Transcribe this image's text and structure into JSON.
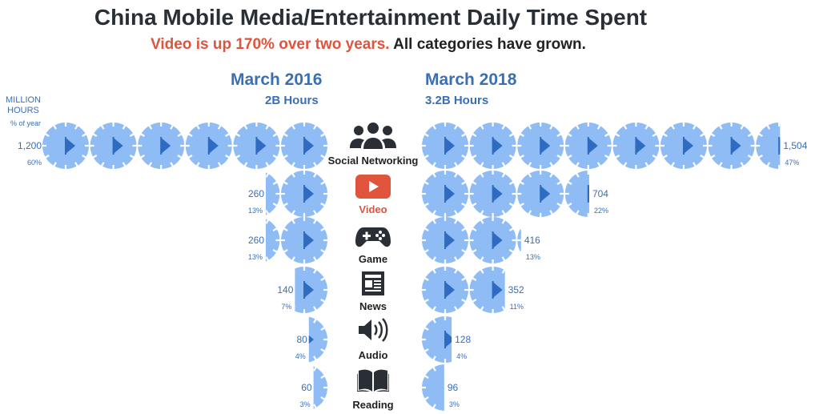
{
  "title": "China Mobile Media/Entertainment Daily Time Spent",
  "subtitle": {
    "highlight": "Video is up 170% over two years.",
    "rest": "All categories have grown."
  },
  "columns": {
    "left": {
      "period": "March 2016",
      "total": "2B Hours"
    },
    "right": {
      "period": "March 2018",
      "total": "3.2B Hours"
    }
  },
  "unit_label": {
    "line1": "MILLION",
    "line2": "HOURS",
    "line3": "% of year"
  },
  "colors": {
    "clock_face": "#8fbcf5",
    "clock_wedge": "#2e6bc1",
    "ticks": "#ffffff",
    "value_text": "#3a6fb4",
    "video": "#e0533d",
    "icon": "#2a2f36"
  },
  "chart_data": {
    "type": "pictogram",
    "unit": "Million hours (each clock = 200M hours)",
    "periods": [
      "March 2016",
      "March 2018"
    ],
    "categories": [
      {
        "name": "Social Networking",
        "icon": "people-icon",
        "march_2016": {
          "value": 1200,
          "value_label": "1,200",
          "share": "60%"
        },
        "march_2018": {
          "value": 1504,
          "value_label": "1,504",
          "share": "47%"
        }
      },
      {
        "name": "Video",
        "icon": "play-button-icon",
        "march_2016": {
          "value": 260,
          "value_label": "260",
          "share": "13%"
        },
        "march_2018": {
          "value": 704,
          "value_label": "704",
          "share": "22%"
        }
      },
      {
        "name": "Game",
        "icon": "gamepad-icon",
        "march_2016": {
          "value": 260,
          "value_label": "260",
          "share": "13%"
        },
        "march_2018": {
          "value": 416,
          "value_label": "416",
          "share": "13%"
        }
      },
      {
        "name": "News",
        "icon": "newspaper-icon",
        "march_2016": {
          "value": 140,
          "value_label": "140",
          "share": "7%"
        },
        "march_2018": {
          "value": 352,
          "value_label": "352",
          "share": "11%"
        }
      },
      {
        "name": "Audio",
        "icon": "speaker-icon",
        "march_2016": {
          "value": 80,
          "value_label": "80",
          "share": "4%"
        },
        "march_2018": {
          "value": 128,
          "value_label": "128",
          "share": "4%"
        }
      },
      {
        "name": "Reading",
        "icon": "book-icon",
        "march_2016": {
          "value": 60,
          "value_label": "60",
          "share": "3%"
        },
        "march_2018": {
          "value": 96,
          "value_label": "96",
          "share": "3%"
        }
      }
    ]
  }
}
